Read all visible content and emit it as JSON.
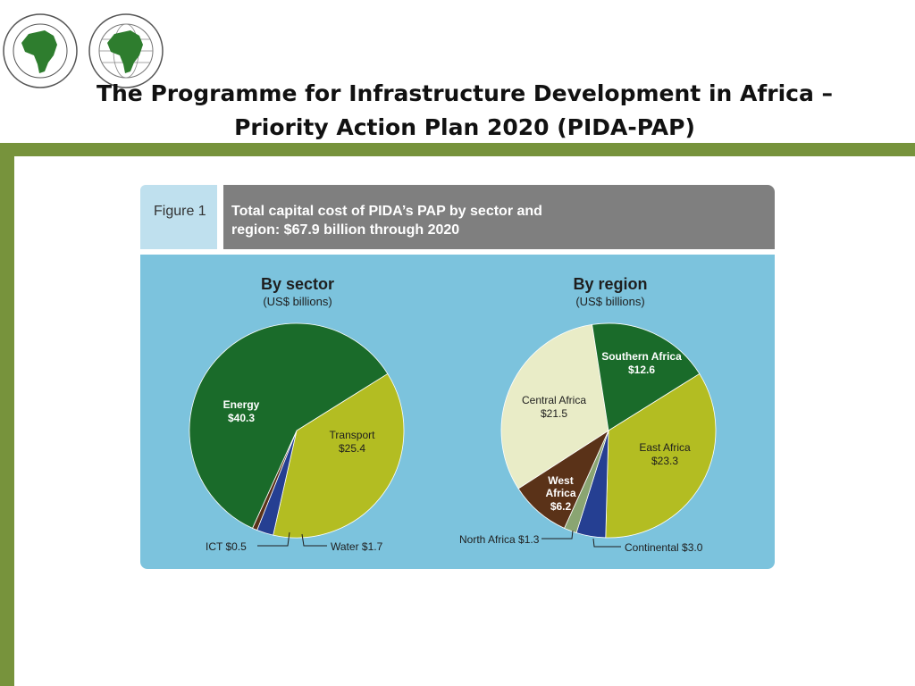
{
  "slide": {
    "title_line1": "The Programme for Infrastructure Development in Africa –",
    "title_line2": "Priority Action Plan 2020 (PIDA-PAP)"
  },
  "logos": [
    {
      "name": "African Development Bank logo",
      "text": "AFRICAN DEVELOPMENT BANK · BANQUE AFRICAINE DE DEVELOPPEMENT"
    },
    {
      "name": "African Development Fund logo",
      "text": "AFRICAN DEVELOPMENT FUND · FONDS AFRICAIN DE DEVELOPPEMENT"
    }
  ],
  "figure": {
    "label": "Figure 1",
    "title_line1": "Total capital cost of PIDA’s PAP by sector and",
    "title_line2": "region: $67.9 billion through 2020"
  },
  "colors": {
    "dark_green": "#1a6b2a",
    "olive": "#b3bd22",
    "navy": "#253f92",
    "brown": "#5a3218",
    "cream": "#e9ecc7",
    "sage": "#8aa572",
    "panel": "#7cc3dd",
    "slide_green": "#77933c"
  },
  "chart_data": [
    {
      "type": "pie",
      "title": "By sector",
      "subtitle": "(US$ billions)",
      "slices": [
        {
          "label": "Transport",
          "value_label": "$25.4",
          "value": 25.4,
          "color": "#b3bd22"
        },
        {
          "label": "Water",
          "value_label": "$1.7",
          "value": 1.7,
          "color": "#253f92"
        },
        {
          "label": "ICT",
          "value_label": "$0.5",
          "value": 0.5,
          "color": "#5a3218"
        },
        {
          "label": "Energy",
          "value_label": "$40.3",
          "value": 40.3,
          "color": "#1a6b2a"
        }
      ],
      "outside_labels": {
        "ict": "ICT $0.5",
        "water": "Water $1.7"
      }
    },
    {
      "type": "pie",
      "title": "By region",
      "subtitle": "(US$ billions)",
      "slices": [
        {
          "label": "East Africa",
          "value_label": "$23.3",
          "value": 23.3,
          "color": "#b3bd22"
        },
        {
          "label": "Continental",
          "value_label": "$3.0",
          "value": 3.0,
          "color": "#253f92"
        },
        {
          "label": "North Africa",
          "value_label": "$1.3",
          "value": 1.3,
          "color": "#8aa572"
        },
        {
          "label": "West Africa",
          "value_label": "$6.2",
          "value": 6.2,
          "color": "#5a3218"
        },
        {
          "label": "Central Africa",
          "value_label": "$21.5",
          "value": 21.5,
          "color": "#e9ecc7"
        },
        {
          "label": "Southern Africa",
          "value_label": "$12.6",
          "value": 12.6,
          "color": "#1a6b2a"
        }
      ],
      "outside_labels": {
        "north": "North Africa $1.3",
        "continental": "Continental $3.0"
      }
    }
  ]
}
